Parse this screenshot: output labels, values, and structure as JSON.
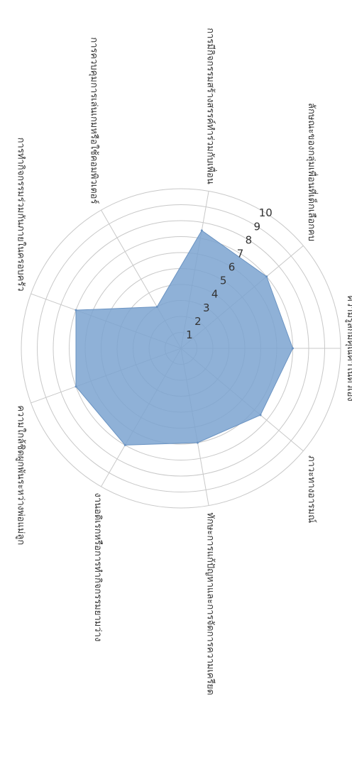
{
  "chart_data": {
    "type": "radar",
    "title": "",
    "r_ticks": [
      1,
      2,
      3,
      4,
      5,
      6,
      7,
      8,
      9,
      10
    ],
    "r_range": [
      0,
      10
    ],
    "grid": true,
    "legend": "none",
    "fill_color": "#7ba3d0",
    "categories": [
      "ความรู้สึกมีคุณค่าในตัวเอง",
      "ภาวะทางอารมณ์",
      "ทักษะการแก้ปัญหาและการจัดการความเครียด",
      "งานอดิเรกหรือการทำกิจกรรมยามว่าง",
      "ความใกล้ชิดผูกพันระหว่างพ่อแม่ลูก",
      "การทำกิจกรรมร่วมกันภายในครอบครัว",
      "การควบคุมการเล่นเกมหรือใช้คอมพิวเตอร์",
      "การมีกิจกรรมสร้างสรรค์ทำร่วมกับเพื่อน",
      "ลักษณะของกลุ่มเพื่อนที่เด็กเลือกคบ"
    ],
    "series": [
      {
        "values": [
          7,
          6.5,
          6,
          7,
          7,
          7,
          3,
          7.5,
          7
        ]
      }
    ]
  }
}
